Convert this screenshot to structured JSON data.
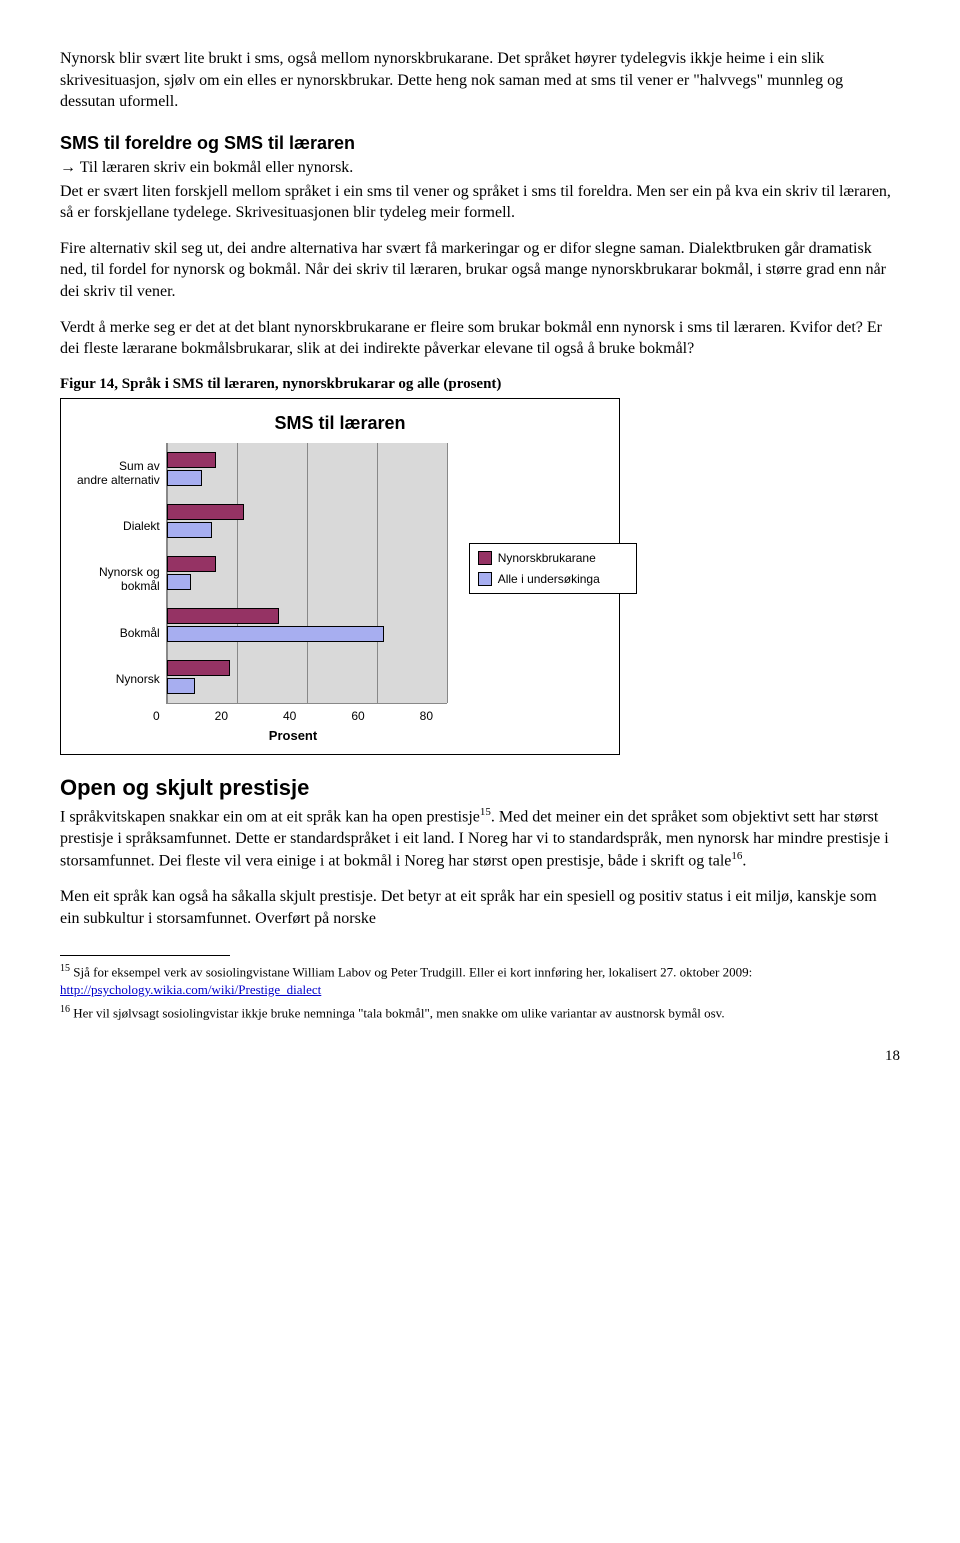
{
  "para1": "Nynorsk blir svært lite brukt i sms, også mellom nynorskbrukarane. Det språket høyrer tydelegvis ikkje heime i ein slik skrivesituasjon, sjølv om ein elles er nynorskbrukar. Dette heng nok saman med at sms til vener er \"halvvegs\" munnleg og dessutan uformell.",
  "heading1": "SMS til foreldre og SMS til læraren",
  "arrow_text": "→ Til læraren skriv ein bokmål eller nynorsk.",
  "para2": "Det er svært liten forskjell mellom språket i ein sms til vener og språket i sms til foreldra. Men ser ein på kva ein skriv til læraren, så er forskjellane tydelege. Skrivesituasjonen blir tydeleg meir formell.",
  "para3": "Fire alternativ skil seg ut, dei andre alternativa har svært få markeringar og er difor slegne saman. Dialektbruken går dramatisk ned, til fordel for nynorsk og bokmål. Når dei skriv til læraren, brukar også mange nynorskbrukarar bokmål, i større grad enn når dei skriv til vener.",
  "para4": "Verdt å merke seg er det at det blant nynorskbrukarane er fleire som brukar bokmål enn nynorsk i sms til læraren. Kvifor det? Er dei fleste lærarane bokmålsbrukarar, slik at dei indirekte påverkar elevane til også å bruke bokmål?",
  "figcaption": "Figur 14, Språk i SMS til læraren, nynorskbrukarar og alle (prosent)",
  "chart": {
    "title": "SMS til læraren",
    "x_title": "Prosent",
    "x_ticks": [
      "0",
      "20",
      "40",
      "60",
      "80"
    ],
    "x_max": 80,
    "categories": [
      "Sum av andre alternativ",
      "Dialekt",
      "Nynorsk og bokmål",
      "Bokmål",
      "Nynorsk"
    ],
    "series": [
      {
        "name": "Nynorskbrukarane",
        "color": "#953364",
        "values": [
          14,
          22,
          14,
          32,
          18
        ]
      },
      {
        "name": "Alle i undersøkinga",
        "color": "#a7aef0",
        "values": [
          10,
          13,
          7,
          62,
          8
        ]
      }
    ],
    "plot_bg": "#d9d9d9",
    "grid_color": "#888888"
  },
  "heading2": "Open og skjult prestisje",
  "para5a": "I språkvitskapen snakkar ein om at eit språk kan ha open prestisje",
  "para5_sup1": "15",
  "para5b": ". Med det meiner ein det språket som objektivt sett har størst prestisje i språksamfunnet. Dette er standardspråket i eit land. I Noreg har vi to standardspråk, men nynorsk har mindre prestisje i storsamfunnet. Dei fleste vil vera einige i at bokmål i Noreg har størst open prestisje, både i skrift og tale",
  "para5_sup2": "16",
  "para5c": ".",
  "para6": "Men eit språk kan også ha såkalla skjult prestisje. Det betyr at eit språk har ein spesiell og positiv status i eit miljø, kanskje som ein subkultur i storsamfunnet. Overført på norske",
  "fn15_num": "15",
  "fn15_text_a": " Sjå for eksempel verk av sosiolingvistane William Labov og Peter Trudgill. Eller ei kort innføring her, lokalisert 27. oktober 2009: ",
  "fn15_link": "http://psychology.wikia.com/wiki/Prestige_dialect",
  "fn16_num": "16",
  "fn16_text": " Her vil sjølvsagt sosiolingvistar ikkje bruke nemninga \"tala bokmål\", men snakke om ulike variantar av austnorsk bymål osv.",
  "page_number": "18"
}
